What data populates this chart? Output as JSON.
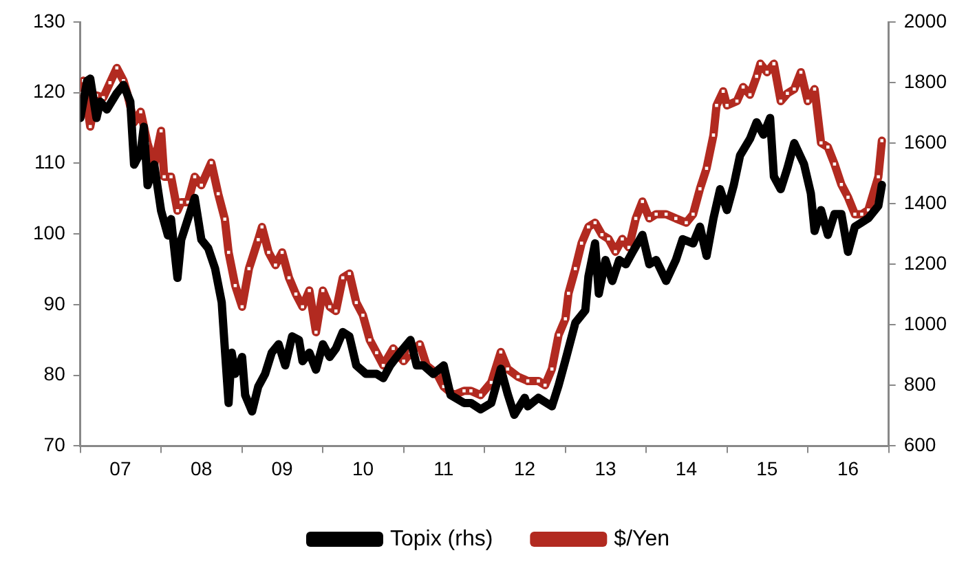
{
  "chart_data": {
    "type": "line",
    "xlim": [
      "2007-01",
      "2017-01"
    ],
    "xticks": [
      {
        "value": "2007",
        "label": null
      },
      {
        "value": "2007-07",
        "label": "07"
      },
      {
        "value": "2008",
        "label": null
      },
      {
        "value": "2008-07",
        "label": "08"
      },
      {
        "value": "2009",
        "label": null
      },
      {
        "value": "2009-07",
        "label": "09"
      },
      {
        "value": "2010",
        "label": null
      },
      {
        "value": "2010-07",
        "label": "10"
      },
      {
        "value": "2011",
        "label": null
      },
      {
        "value": "2011-07",
        "label": "11"
      },
      {
        "value": "2012",
        "label": null
      },
      {
        "value": "2012-07",
        "label": "12"
      },
      {
        "value": "2013",
        "label": null
      },
      {
        "value": "2013-07",
        "label": "13"
      },
      {
        "value": "2014",
        "label": null
      },
      {
        "value": "2014-07",
        "label": "14"
      },
      {
        "value": "2015",
        "label": null
      },
      {
        "value": "2015-07",
        "label": "15"
      },
      {
        "value": "2016",
        "label": null
      },
      {
        "value": "2016-07",
        "label": "16"
      },
      {
        "value": "2017",
        "label": null
      }
    ],
    "ylim": [
      70,
      130
    ],
    "yticks": [
      70,
      80,
      90,
      100,
      110,
      120,
      130
    ],
    "y2lim": [
      600,
      2000
    ],
    "y2ticks": [
      600,
      800,
      1000,
      1200,
      1400,
      1600,
      1800,
      2000
    ],
    "grid": false,
    "legend": "bottom",
    "series": [
      {
        "name": "Topix (rhs)",
        "color": "#000000",
        "axis": "y2",
        "marker": "none",
        "x": [
          "2007-01-01",
          "2007-02-01",
          "2007-02-15",
          "2007-03-15",
          "2007-04-01",
          "2007-05-01",
          "2007-06-15",
          "2007-07-15",
          "2007-08-15",
          "2007-09-01",
          "2007-10-01",
          "2007-10-15",
          "2007-11-01",
          "2007-12-01",
          "2008-01-01",
          "2008-02-01",
          "2008-02-15",
          "2008-03-15",
          "2008-04-01",
          "2008-05-01",
          "2008-06-01",
          "2008-07-01",
          "2008-08-01",
          "2008-09-01",
          "2008-10-01",
          "2008-10-15",
          "2008-11-01",
          "2008-11-15",
          "2008-12-01",
          "2009-01-01",
          "2009-01-15",
          "2009-02-15",
          "2009-03-15",
          "2009-04-15",
          "2009-05-15",
          "2009-06-15",
          "2009-07-15",
          "2009-08-15",
          "2009-09-15",
          "2009-10-01",
          "2009-11-01",
          "2009-12-01",
          "2010-01-01",
          "2010-02-01",
          "2010-03-01",
          "2010-04-01",
          "2010-05-01",
          "2010-06-01",
          "2010-07-15",
          "2010-09-01",
          "2010-10-01",
          "2010-11-01",
          "2010-12-15",
          "2011-02-01",
          "2011-03-01",
          "2011-04-01",
          "2011-05-15",
          "2011-07-01",
          "2011-08-01",
          "2011-10-01",
          "2011-11-01",
          "2011-12-15",
          "2012-02-01",
          "2012-03-15",
          "2012-04-15",
          "2012-05-15",
          "2012-07-01",
          "2012-07-15",
          "2012-09-01",
          "2012-11-01",
          "2012-12-01",
          "2013-01-01",
          "2013-02-15",
          "2013-04-01",
          "2013-04-15",
          "2013-05-15",
          "2013-06-01",
          "2013-07-01",
          "2013-08-01",
          "2013-09-01",
          "2013-10-01",
          "2013-11-01",
          "2013-12-15",
          "2014-01-15",
          "2014-02-15",
          "2014-04-01",
          "2014-05-15",
          "2014-06-15",
          "2014-08-01",
          "2014-09-01",
          "2014-10-01",
          "2014-11-01",
          "2014-12-01",
          "2015-01-01",
          "2015-02-01",
          "2015-03-01",
          "2015-04-15",
          "2015-05-15",
          "2015-06-15",
          "2015-07-15",
          "2015-08-01",
          "2015-09-01",
          "2015-10-01",
          "2015-11-01",
          "2015-12-15",
          "2016-01-15",
          "2016-02-01",
          "2016-03-01",
          "2016-04-01",
          "2016-05-01",
          "2016-06-01",
          "2016-07-01",
          "2016-08-01",
          "2016-09-01",
          "2016-10-01",
          "2016-11-15",
          "2016-12-01"
        ],
        "values": [
          1683,
          1806,
          1813,
          1683,
          1737,
          1711,
          1765,
          1792,
          1737,
          1529,
          1571,
          1654,
          1461,
          1529,
          1377,
          1295,
          1349,
          1155,
          1281,
          1349,
          1419,
          1281,
          1253,
          1186,
          1074,
          922,
          742,
          908,
          838,
          894,
          768,
          714,
          796,
          838,
          908,
          936,
          866,
          962,
          950,
          880,
          908,
          852,
          936,
          894,
          922,
          976,
          962,
          866,
          838,
          838,
          824,
          866,
          908,
          950,
          866,
          866,
          838,
          866,
          768,
          742,
          742,
          721,
          742,
          855,
          772,
          703,
          759,
          731,
          759,
          731,
          800,
          883,
          1007,
          1048,
          1159,
          1269,
          1103,
          1214,
          1145,
          1214,
          1200,
          1241,
          1297,
          1200,
          1214,
          1145,
          1214,
          1283,
          1269,
          1324,
          1228,
          1352,
          1448,
          1379,
          1462,
          1559,
          1614,
          1669,
          1628,
          1683,
          1490,
          1448,
          1517,
          1600,
          1531,
          1434,
          1310,
          1379,
          1297,
          1366,
          1366,
          1241,
          1324,
          1338,
          1352,
          1393,
          1462
        ]
      },
      {
        "name": "$/Yen",
        "color": "#b22a20",
        "marker": "square",
        "x": [
          "2007-01-01",
          "2007-01-15",
          "2007-02-15",
          "2007-03-15",
          "2007-04-15",
          "2007-05-15",
          "2007-06-15",
          "2007-07-15",
          "2007-08-01",
          "2007-09-01",
          "2007-10-01",
          "2007-11-01",
          "2007-12-01",
          "2008-01-01",
          "2008-01-15",
          "2008-02-15",
          "2008-03-15",
          "2008-04-01",
          "2008-05-01",
          "2008-06-01",
          "2008-07-01",
          "2008-08-15",
          "2008-09-15",
          "2008-10-15",
          "2008-11-01",
          "2008-12-01",
          "2009-01-01",
          "2009-02-01",
          "2009-03-15",
          "2009-04-01",
          "2009-05-01",
          "2009-06-01",
          "2009-07-01",
          "2009-08-01",
          "2009-09-01",
          "2009-10-01",
          "2009-11-01",
          "2009-12-01",
          "2010-01-01",
          "2010-02-01",
          "2010-03-01",
          "2010-04-01",
          "2010-05-01",
          "2010-06-01",
          "2010-07-01",
          "2010-08-01",
          "2010-09-01",
          "2010-10-01",
          "2010-11-15",
          "2011-01-01",
          "2011-02-01",
          "2011-03-15",
          "2011-04-15",
          "2011-06-01",
          "2011-07-01",
          "2011-08-15",
          "2011-10-01",
          "2011-11-01",
          "2011-12-15",
          "2012-02-01",
          "2012-03-15",
          "2012-04-15",
          "2012-06-01",
          "2012-07-15",
          "2012-09-01",
          "2012-10-01",
          "2012-11-01",
          "2012-12-01",
          "2013-01-01",
          "2013-01-15",
          "2013-02-15",
          "2013-03-15",
          "2013-04-15",
          "2013-05-15",
          "2013-06-15",
          "2013-07-15",
          "2013-08-15",
          "2013-09-15",
          "2013-10-15",
          "2013-11-15",
          "2013-12-15",
          "2014-01-15",
          "2014-02-15",
          "2014-04-01",
          "2014-05-15",
          "2014-07-01",
          "2014-08-01",
          "2014-09-01",
          "2014-10-01",
          "2014-11-01",
          "2014-11-15",
          "2014-12-15",
          "2015-01-01",
          "2015-02-15",
          "2015-03-15",
          "2015-04-15",
          "2015-05-15",
          "2015-06-01",
          "2015-07-01",
          "2015-08-01",
          "2015-09-01",
          "2015-10-01",
          "2015-11-01",
          "2015-12-01",
          "2016-01-01",
          "2016-02-01",
          "2016-03-01",
          "2016-04-01",
          "2016-05-01",
          "2016-06-01",
          "2016-07-01",
          "2016-08-01",
          "2016-09-01",
          "2016-10-01",
          "2016-11-15",
          "2016-12-01"
        ],
        "values": [
          119.9,
          121.7,
          115.2,
          119.6,
          119.3,
          121.4,
          123.5,
          121.7,
          119.9,
          115.8,
          117.3,
          112.8,
          109.8,
          114.6,
          108.1,
          108.1,
          103.3,
          104.5,
          104.5,
          108.1,
          106.9,
          110.1,
          105.7,
          102.1,
          97.4,
          92.7,
          89.7,
          95.1,
          99.2,
          101.0,
          97.4,
          95.6,
          97.4,
          93.8,
          91.5,
          89.7,
          92.0,
          86.1,
          92.0,
          89.7,
          89.1,
          93.8,
          94.4,
          90.3,
          88.5,
          85.0,
          83.2,
          81.4,
          83.8,
          82.0,
          83.2,
          84.4,
          81.4,
          80.2,
          78.4,
          77.2,
          77.8,
          77.8,
          77.2,
          79.0,
          83.3,
          80.9,
          79.8,
          79.2,
          79.2,
          78.6,
          80.9,
          85.7,
          88.0,
          91.6,
          95.1,
          98.7,
          101.0,
          101.6,
          99.9,
          99.3,
          97.5,
          99.3,
          98.1,
          102.2,
          104.6,
          102.2,
          102.8,
          102.8,
          102.2,
          101.6,
          102.8,
          106.4,
          109.3,
          114.0,
          118.2,
          120.2,
          118.2,
          118.8,
          120.8,
          119.7,
          122.3,
          124.1,
          122.9,
          124.1,
          118.8,
          119.9,
          120.5,
          122.9,
          118.8,
          120.5,
          112.9,
          112.3,
          109.9,
          107.0,
          105.2,
          102.8,
          102.8,
          103.4,
          108.1,
          113.2
        ]
      }
    ]
  }
}
